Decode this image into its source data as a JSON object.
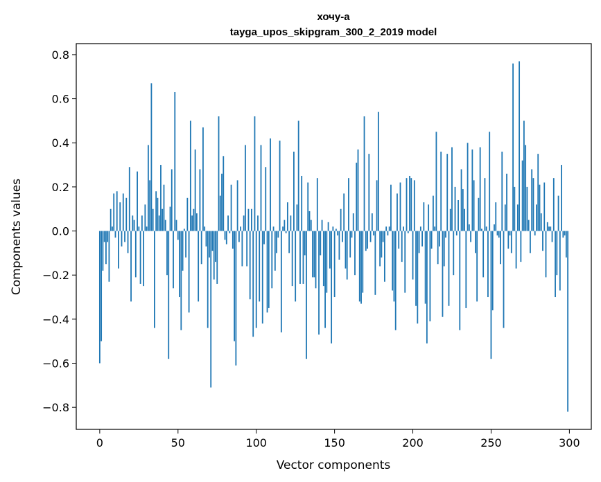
{
  "chart_data": {
    "type": "bar",
    "title": "хочу-а",
    "subtitle": "tayga_upos_skipgram_300_2_2019 model",
    "xlabel": "Vector components",
    "ylabel": "Components values",
    "xlim": [
      -15,
      314
    ],
    "ylim": [
      -0.9,
      0.85
    ],
    "xticks": [
      0,
      50,
      100,
      150,
      200,
      250,
      300
    ],
    "xtick_labels": [
      "0",
      "50",
      "100",
      "150",
      "200",
      "250",
      "300"
    ],
    "yticks": [
      -0.8,
      -0.6,
      -0.4,
      -0.2,
      0.0,
      0.2,
      0.4,
      0.6,
      0.8
    ],
    "ytick_labels": [
      "−0.8",
      "−0.6",
      "−0.4",
      "−0.2",
      "0.0",
      "0.2",
      "0.4",
      "0.6",
      "0.8"
    ],
    "grid": false,
    "bar_color": "#1f77b4",
    "values": [
      -0.6,
      -0.5,
      -0.18,
      -0.05,
      -0.15,
      -0.05,
      -0.23,
      0.1,
      0.02,
      0.17,
      -0.03,
      0.18,
      -0.17,
      0.13,
      -0.07,
      0.17,
      -0.05,
      0.15,
      -0.1,
      0.29,
      -0.32,
      0.07,
      0.05,
      -0.21,
      0.27,
      0.02,
      -0.24,
      0.07,
      -0.25,
      0.12,
      0.02,
      0.39,
      0.23,
      0.67,
      0.1,
      -0.44,
      0.18,
      0.15,
      0.07,
      0.3,
      0.1,
      0.21,
      0.05,
      -0.2,
      -0.58,
      0.11,
      0.28,
      -0.26,
      0.63,
      0.05,
      -0.04,
      -0.3,
      -0.45,
      -0.18,
      0.01,
      -0.12,
      0.15,
      -0.37,
      0.5,
      0.07,
      0.1,
      0.37,
      0.08,
      -0.32,
      0.28,
      -0.15,
      0.47,
      0.02,
      -0.07,
      -0.44,
      -0.12,
      -0.71,
      -0.09,
      -0.22,
      -0.14,
      -0.24,
      0.52,
      0.16,
      0.26,
      0.34,
      -0.04,
      -0.06,
      0.07,
      -0.01,
      0.21,
      -0.08,
      -0.5,
      -0.61,
      0.23,
      -0.05,
      0.02,
      -0.16,
      0.07,
      0.39,
      -0.16,
      0.1,
      -0.31,
      0.1,
      -0.48,
      0.52,
      -0.44,
      0.07,
      -0.32,
      0.39,
      -0.42,
      -0.06,
      0.29,
      -0.37,
      -0.35,
      0.42,
      -0.26,
      0.02,
      -0.18,
      -0.1,
      -0.03,
      0.41,
      -0.46,
      0.02,
      0.05,
      -0.01,
      0.13,
      -0.1,
      0.07,
      -0.25,
      0.36,
      -0.32,
      0.12,
      0.5,
      -0.24,
      0.25,
      -0.24,
      -0.11,
      -0.58,
      0.22,
      0.09,
      0.05,
      -0.21,
      -0.21,
      -0.26,
      0.24,
      -0.47,
      -0.11,
      0.05,
      -0.25,
      -0.44,
      -0.28,
      0.04,
      -0.17,
      -0.51,
      0.02,
      -0.3,
      0.01,
      -0.02,
      -0.13,
      0.1,
      -0.05,
      0.17,
      -0.17,
      -0.22,
      0.24,
      -0.12,
      -0.03,
      0.08,
      -0.2,
      0.31,
      0.37,
      -0.32,
      -0.33,
      -0.28,
      0.52,
      -0.09,
      -0.08,
      0.35,
      -0.05,
      0.08,
      -0.02,
      -0.29,
      0.23,
      0.54,
      -0.16,
      -0.12,
      -0.05,
      -0.23,
      0.02,
      -0.02,
      0.02,
      0.21,
      -0.27,
      -0.32,
      -0.45,
      0.17,
      -0.08,
      0.22,
      -0.14,
      0.02,
      -0.28,
      0.24,
      -0.01,
      0.25,
      0.24,
      -0.22,
      0.23,
      -0.34,
      -0.42,
      -0.1,
      0.02,
      -0.07,
      0.13,
      -0.33,
      -0.51,
      0.12,
      -0.41,
      -0.08,
      0.16,
      0.02,
      0.45,
      -0.15,
      -0.07,
      0.36,
      -0.39,
      -0.16,
      -0.03,
      0.35,
      -0.34,
      0.1,
      0.38,
      -0.2,
      0.2,
      -0.02,
      0.14,
      -0.45,
      0.28,
      0.19,
      0.1,
      -0.35,
      0.4,
      0.03,
      -0.05,
      0.37,
      0.23,
      -0.1,
      -0.32,
      0.15,
      0.38,
      0.01,
      -0.21,
      0.24,
      0.02,
      -0.3,
      0.45,
      -0.58,
      -0.36,
      0.03,
      0.13,
      -0.02,
      -0.03,
      -0.15,
      0.36,
      -0.44,
      0.12,
      0.26,
      -0.08,
      -0.02,
      -0.1,
      0.76,
      0.2,
      -0.17,
      0.12,
      0.77,
      -0.14,
      0.32,
      0.5,
      0.39,
      0.2,
      0.05,
      -0.1,
      0.28,
      0.24,
      -0.02,
      0.12,
      0.35,
      0.21,
      0.08,
      -0.09,
      0.22,
      -0.21,
      0.04,
      0.02,
      0.02,
      -0.05,
      0.24,
      -0.3,
      -0.2,
      0.16,
      -0.27,
      0.3,
      -0.03,
      -0.02,
      -0.12,
      -0.82
    ]
  }
}
